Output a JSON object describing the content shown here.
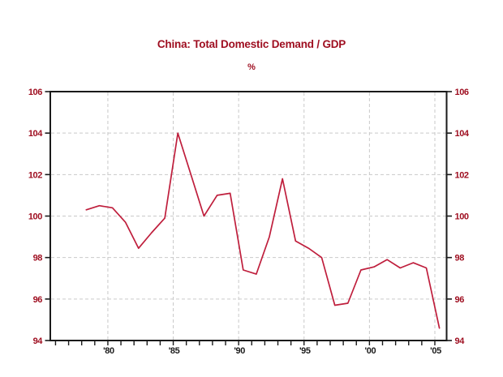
{
  "title": "China: Total Domestic Demand / GDP",
  "subtitle": "%",
  "colors": {
    "accent_red": "#9e0d1f",
    "line_red": "#bf1e3c",
    "grid_gray": "#c9c9c9",
    "axis_black": "#1a1a1a",
    "background": "#ffffff"
  },
  "chart_data": {
    "type": "line",
    "title": "China: Total Domestic Demand / GDP",
    "ylabel": "%",
    "xlabel": "",
    "grid": true,
    "legend_position": "none",
    "ylim": [
      94,
      106
    ],
    "xlim": [
      1975.6,
      2005.9
    ],
    "yticks": [
      94,
      96,
      98,
      100,
      102,
      104,
      106
    ],
    "ytick_labels": [
      "94",
      "96",
      "98",
      "100",
      "102",
      "104",
      "106"
    ],
    "ytick_sides": [
      "left",
      "right"
    ],
    "minor_xtick_year_range": [
      1976,
      2005
    ],
    "xticks_labeled": [
      {
        "year": 1980,
        "label": "'80"
      },
      {
        "year": 1985,
        "label": "'85"
      },
      {
        "year": 1990,
        "label": "'90"
      },
      {
        "year": 1995,
        "label": "'95"
      },
      {
        "year": 2000,
        "label": "'00"
      },
      {
        "year": 2005,
        "label": "'05"
      }
    ],
    "series": [
      {
        "name": "Total Domestic Demand / GDP (%)",
        "x": [
          1978,
          1979,
          1980,
          1981,
          1982,
          1983,
          1984,
          1985,
          1986,
          1987,
          1988,
          1989,
          1990,
          1991,
          1992,
          1993,
          1994,
          1995,
          1996,
          1997,
          1998,
          1999,
          2000,
          2001,
          2002,
          2003,
          2004,
          2005
        ],
        "values": [
          100.3,
          100.5,
          100.4,
          99.7,
          98.45,
          99.2,
          99.9,
          104.0,
          102.0,
          100.0,
          101.0,
          101.1,
          97.4,
          97.2,
          99.0,
          101.8,
          98.8,
          98.45,
          98.0,
          95.7,
          95.8,
          97.4,
          97.55,
          97.9,
          97.5,
          97.75,
          97.5,
          94.6
        ]
      }
    ]
  }
}
